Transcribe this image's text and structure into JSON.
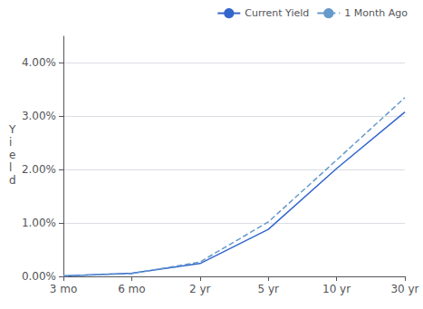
{
  "chart_data": {
    "type": "line",
    "y_label": "Y\ni\ne\nl\nd",
    "categories": [
      "3 mo",
      "6 mo",
      "2 yr",
      "5 yr",
      "10 yr",
      "30 yr"
    ],
    "series": [
      {
        "name": "Current Yield",
        "color": "#3366cc",
        "line_style": "solid",
        "values": [
          0.0001,
          0.0006,
          0.0024,
          0.0088,
          0.0202,
          0.0308
        ]
      },
      {
        "name": "1 Month Ago",
        "color": "#6699cc",
        "line_style": "dashed",
        "values": [
          0.0001,
          0.0005,
          0.0027,
          0.0102,
          0.0218,
          0.0335
        ]
      }
    ],
    "ylim": [
      0.0,
      0.045
    ],
    "yticks": [
      {
        "value": 0.0,
        "label": "0.00%"
      },
      {
        "value": 0.01,
        "label": "1.00%"
      },
      {
        "value": 0.02,
        "label": "2.00%"
      },
      {
        "value": 0.03,
        "label": "3.00%"
      },
      {
        "value": 0.04,
        "label": "4.00%"
      }
    ],
    "grid": true,
    "legend": "upper right"
  }
}
